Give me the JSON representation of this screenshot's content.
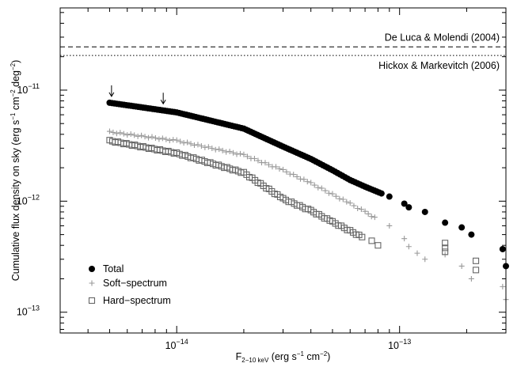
{
  "chart_data": {
    "type": "scatter",
    "x_scale": "log",
    "y_scale": "log",
    "xlim": [
      3e-15,
      3e-13
    ],
    "ylim": [
      6.5e-14,
      5.5e-11
    ],
    "xlabel_main": "F",
    "xlabel_sub": "2−10 keV",
    "xlabel_rest": " (erg s",
    "xlabel_exp1": "−1",
    "xlabel_mid": " cm",
    "xlabel_exp2": "−2",
    "xlabel_end": ")",
    "ylabel_pre": "Cumulative flux density on sky (erg s",
    "ylabel_exp1": "−1",
    "ylabel_mid1": " cm",
    "ylabel_exp2": "−2",
    "ylabel_mid2": " deg",
    "ylabel_exp3": "−2",
    "ylabel_end": ")",
    "x_ticks": [
      {
        "value": 1e-14,
        "base": "10",
        "exp": "−14"
      },
      {
        "value": 1e-13,
        "base": "10",
        "exp": "−13"
      }
    ],
    "y_ticks": [
      {
        "value": 1e-11,
        "base": "10",
        "exp": "−11"
      },
      {
        "value": 1e-12,
        "base": "10",
        "exp": "−12"
      },
      {
        "value": 1e-13,
        "base": "10",
        "exp": "−13"
      }
    ],
    "reference_lines": [
      {
        "label": "De Luca & Molendi (2004)",
        "y": 2.45e-11,
        "style": "dashed"
      },
      {
        "label": "Hickox & Markevitch (2006)",
        "y": 2.05e-11,
        "style": "dotted"
      }
    ],
    "arrows": [
      {
        "x": 5.1e-15,
        "y": 7.7e-12
      },
      {
        "x": 8.7e-15,
        "y": 6.6e-12
      }
    ],
    "legend_position": "bottom-left",
    "series": [
      {
        "name": "Total",
        "marker": "filled-circle",
        "color": "#000000",
        "dense_segments": [
          {
            "x": [
              5e-15,
              1e-14,
              2e-14,
              3e-14,
              4e-14,
              5e-14,
              6e-14,
              7e-14,
              8.5e-14
            ],
            "y": [
              7.7e-12,
              6.3e-12,
              4.5e-12,
              3.1e-12,
              2.4e-12,
              1.9e-12,
              1.55e-12,
              1.35e-12,
              1.15e-12
            ]
          }
        ],
        "points": [
          {
            "x": 9e-14,
            "y": 1.1e-12
          },
          {
            "x": 1.05e-13,
            "y": 9.5e-13
          },
          {
            "x": 1.1e-13,
            "y": 8.8e-13
          },
          {
            "x": 1.3e-13,
            "y": 8e-13
          },
          {
            "x": 1.6e-13,
            "y": 6.4e-13
          },
          {
            "x": 1.9e-13,
            "y": 5.8e-13
          },
          {
            "x": 2.1e-13,
            "y": 5e-13
          },
          {
            "x": 2.9e-13,
            "y": 3.7e-13
          },
          {
            "x": 3e-13,
            "y": 2.6e-13
          }
        ]
      },
      {
        "name": "Soft−spectrum",
        "marker": "plus",
        "color": "#999999",
        "dense_segments": [
          {
            "x": [
              5e-15,
              1e-14,
              2e-14,
              3e-14,
              4e-14,
              5e-14,
              6e-14,
              7e-14,
              8e-14
            ],
            "y": [
              4.2e-12,
              3.5e-12,
              2.6e-12,
              1.9e-12,
              1.45e-12,
              1.15e-12,
              9.5e-13,
              8e-13,
              6.8e-13
            ]
          }
        ],
        "points": [
          {
            "x": 9e-14,
            "y": 6e-13
          },
          {
            "x": 1.05e-13,
            "y": 4.6e-13
          },
          {
            "x": 1.1e-13,
            "y": 3.9e-13
          },
          {
            "x": 1.2e-13,
            "y": 3.4e-13
          },
          {
            "x": 1.3e-13,
            "y": 3e-13
          },
          {
            "x": 1.6e-13,
            "y": 3.3e-13
          },
          {
            "x": 1.9e-13,
            "y": 2.6e-13
          },
          {
            "x": 2.1e-13,
            "y": 2e-13
          },
          {
            "x": 2.9e-13,
            "y": 1.7e-13
          },
          {
            "x": 3e-13,
            "y": 1.3e-13
          }
        ]
      },
      {
        "name": "Hard−spectrum",
        "marker": "open-square",
        "color": "#666666",
        "dense_segments": [
          {
            "x": [
              5e-15,
              1e-14,
              2e-14,
              3e-14,
              4e-14,
              5e-14,
              6e-14,
              7e-14
            ],
            "y": [
              3.5e-12,
              2.7e-12,
              1.8e-12,
              1.05e-12,
              8.2e-13,
              6.5e-13,
              5.4e-13,
              4.6e-13
            ]
          }
        ],
        "points": [
          {
            "x": 7.5e-14,
            "y": 4.4e-13
          },
          {
            "x": 8e-14,
            "y": 4e-13
          },
          {
            "x": 1.6e-13,
            "y": 4.2e-13
          },
          {
            "x": 1.6e-13,
            "y": 3.8e-13
          },
          {
            "x": 1.6e-13,
            "y": 3.5e-13
          },
          {
            "x": 2.2e-13,
            "y": 2.9e-13
          },
          {
            "x": 2.2e-13,
            "y": 2.4e-13
          }
        ]
      }
    ]
  }
}
